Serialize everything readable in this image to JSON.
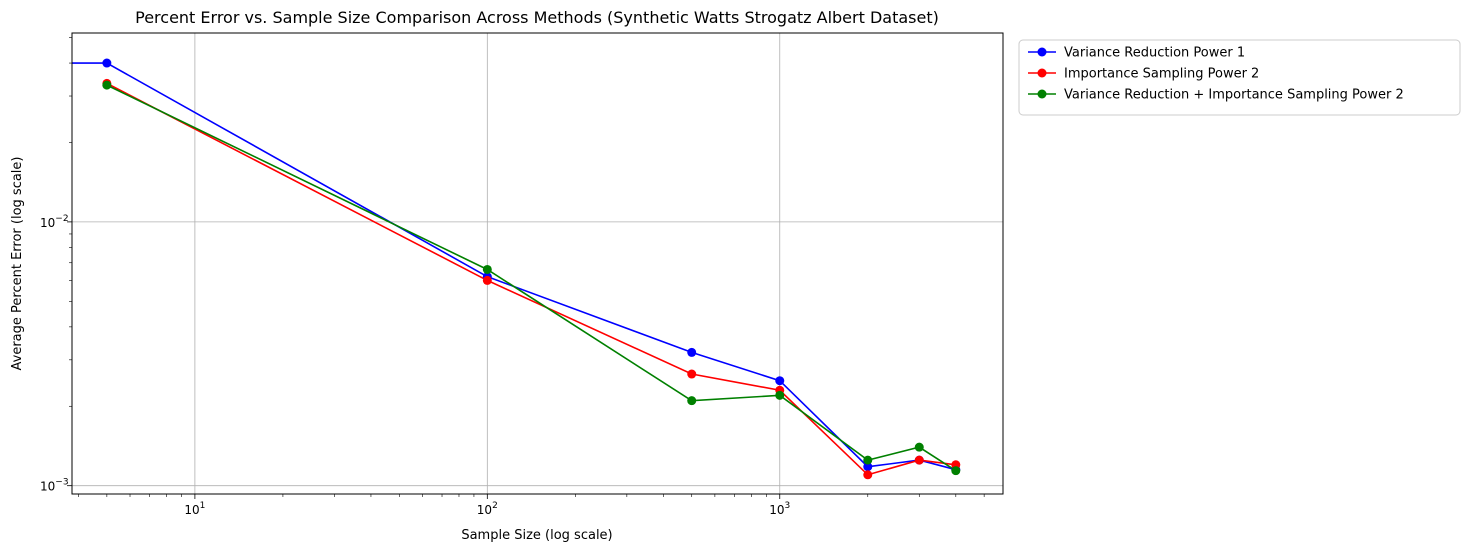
{
  "chart_data": {
    "type": "line",
    "title": "Percent Error vs. Sample Size Comparison Across Methods (Synthetic Watts Strogatz Albert Dataset)",
    "xlabel": "Sample Size (log scale)",
    "ylabel": "Average Percent Error (log scale)",
    "xscale": "log",
    "yscale": "log",
    "xlim": [
      3.8,
      5800
    ],
    "ylim": [
      0.00093,
      0.052
    ],
    "grid": true,
    "legend_position": "outside-upper-right",
    "x_ticks": [
      {
        "value": 10,
        "base": "10",
        "exp": "1"
      },
      {
        "value": 100,
        "base": "10",
        "exp": "2"
      },
      {
        "value": 1000,
        "base": "10",
        "exp": "3"
      }
    ],
    "y_ticks": [
      {
        "value": 0.001,
        "base": "10",
        "exp": "−3"
      },
      {
        "value": 0.01,
        "base": "10",
        "exp": "−2"
      }
    ],
    "x": [
      1,
      5,
      100,
      500,
      1000,
      2000,
      3000,
      4000
    ],
    "series": [
      {
        "name": "Variance Reduction Power 1",
        "color": "#0000ff",
        "values": [
          0.04,
          0.04,
          0.0062,
          0.0032,
          0.0025,
          0.00118,
          0.00125,
          0.00115
        ]
      },
      {
        "name": "Importance Sampling Power 2",
        "color": "#ff0000",
        "values": [
          null,
          0.0335,
          0.006,
          0.00265,
          0.0023,
          0.0011,
          0.00125,
          0.0012
        ]
      },
      {
        "name": "Variance Reduction + Importance Sampling Power 2",
        "color": "#008000",
        "values": [
          null,
          0.033,
          0.0066,
          0.0021,
          0.0022,
          0.00125,
          0.0014,
          0.00114
        ]
      }
    ]
  }
}
